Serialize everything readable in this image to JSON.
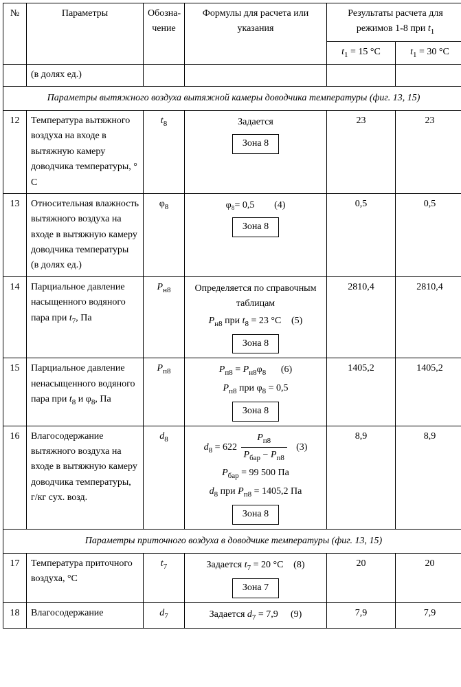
{
  "header": {
    "col_num": "№",
    "col_param": "Параметры",
    "col_sym": "Обозна-\nчение",
    "col_form": "Формулы для расчета или указания",
    "col_res_top": "Результаты расчета для режимов 1-8 при ",
    "t1": "t",
    "t1_sub": "1",
    "res_a": " = 15 °С",
    "res_b": " = 30 °С"
  },
  "row_cont": {
    "param": "(в долях ед.)"
  },
  "section1": "Параметры вытяжного воздуха вытяжной камеры доводчика температуры (фиг. 13, 15)",
  "row12": {
    "n": "12",
    "param": "Температура вытяж­ного воздуха на входе в вытяжную камеру доводчика темпера­туры, ° С",
    "sym_i": "t",
    "sym_sub": "8",
    "form_top": "Задается",
    "zone": "Зона 8",
    "r1": "23",
    "r2": "23"
  },
  "row13": {
    "n": "13",
    "param": "Относительная влаж­ность вытяжного воз­духа на входе в вытяжную камеру доводчика темпера­туры (в долях ед.)",
    "sym": "φ",
    "sym_sub": "8",
    "form_eq": "φ₈= 0,5",
    "eqn": "(4)",
    "zone": "Зона 8",
    "r1": "0,5",
    "r2": "0,5"
  },
  "row14": {
    "n": "14",
    "param": "Парциальное давление насыщенного водяно­го пара при ",
    "param_t": "t",
    "param_tsub": "7",
    "param_tail": ", Па",
    "sym_i": "P",
    "sym_sub": "н8",
    "line1": "Определяется по справочным таблицам",
    "line2a": "P",
    "line2b": "н8",
    "line2c": " при ",
    "line2d": "t",
    "line2e": "8",
    "line2f": " = 23 °С",
    "eqn": "(5)",
    "zone": "Зона 8",
    "r1": "2810,4",
    "r2": "2810,4"
  },
  "row15": {
    "n": "15",
    "param_a": "Парциальное давление ненасыщенного водяного пара при ",
    "t_i": "t",
    "t_sub": "8",
    "and": " и φ",
    "phi_sub": "8",
    "tail": ", Па",
    "sym_i": "P",
    "sym_sub": "п8",
    "eq_lhs_i": "P",
    "eq_lhs_sub": "п8",
    "eq_rhs1_i": "P",
    "eq_rhs1_sub": "н8",
    "eq_rhs2": "φ",
    "eq_rhs2_sub": "8",
    "eqn": "(6)",
    "line2a": "P",
    "line2b": "п8",
    "line2c": " при φ",
    "line2d": "8",
    "line2e": " = 0,5",
    "zone": "Зона 8",
    "r1": "1405,2",
    "r2": "1405,2"
  },
  "row16": {
    "n": "16",
    "param": "Влагосодержание вытяжного воздуха на входе в вытяжную камеру доводчика температуры, г/кг сух. возд.",
    "sym_i": "d",
    "sym_sub": "8",
    "eq_lhs_i": "d",
    "eq_lhs_sub": "8",
    "eq_const": "622",
    "frac_top_i": "P",
    "frac_top_sub": "п8",
    "frac_bot1_i": "P",
    "frac_bot1_sub": "бар",
    "frac_bot2_i": "P",
    "frac_bot2_sub": "п8",
    "eqn": "(3)",
    "line2_i": "P",
    "line2_sub": "бар",
    "line2_tail": " = 99 500 Па",
    "line3_i": "d",
    "line3_sub": "8",
    "line3_mid": " при ",
    "line3_p": "P",
    "line3_psub": "п8",
    "line3_tail": " = 1405,2 Па",
    "zone": "Зона 8",
    "r1": "8,9",
    "r2": "8,9"
  },
  "section2": "Параметры приточного воздуха в доводчике температуры (фиг. 13, 15)",
  "row17": {
    "n": "17",
    "param": "Температура приточ­ного воздуха, °С",
    "sym_i": "t",
    "sym_sub": "7",
    "form_a": "Задается ",
    "form_t": "t",
    "form_tsub": "7",
    "form_tail": " = 20 °С",
    "eqn": "(8)",
    "zone": "Зона 7",
    "r1": "20",
    "r2": "20"
  },
  "row18": {
    "n": "18",
    "param": "Влагосодержание",
    "sym_i": "d",
    "sym_sub": "7",
    "form_a": "Задается ",
    "form_d": "d",
    "form_dsub": "7",
    "form_tail": " = 7,9",
    "eqn": "(9)",
    "r1": "7,9",
    "r2": "7,9"
  }
}
